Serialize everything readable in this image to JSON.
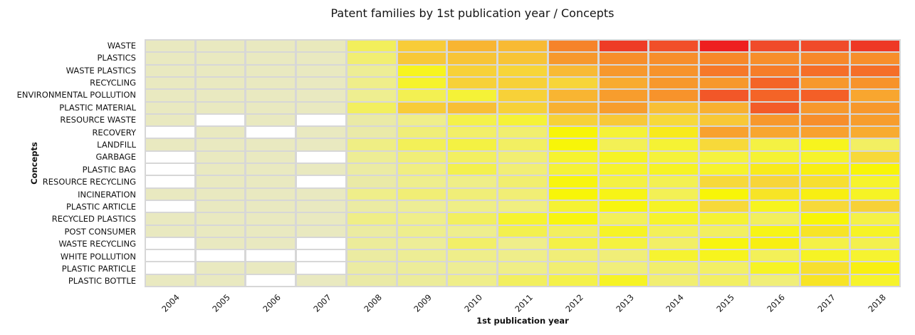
{
  "title": "Patent families by 1st publication year / Concepts",
  "chart_data": {
    "type": "heatmap",
    "title": "Patent families by 1st publication year / Concepts",
    "xlabel": "1st publication year",
    "ylabel": "Concepts",
    "x": [
      "2004",
      "2005",
      "2006",
      "2007",
      "2008",
      "2009",
      "2010",
      "2011",
      "2012",
      "2013",
      "2014",
      "2015",
      "2016",
      "2017",
      "2018"
    ],
    "y": [
      "WASTE",
      "PLASTICS",
      "WASTE PLASTICS",
      "RECYCLING",
      "ENVIRONMENTAL POLLUTION",
      "PLASTIC MATERIAL",
      "RESOURCE WASTE",
      "RECOVERY",
      "LANDFILL",
      "GARBAGE",
      "PLASTIC BAG",
      "RESOURCE RECYCLING",
      "INCINERATION",
      "PLASTIC ARTICLE",
      "RECYCLED PLASTICS",
      "POST CONSUMER",
      "WASTE RECYCLING",
      "WHITE POLLUTION",
      "PLASTIC PARTICLE",
      "PLASTIC BOTTLE"
    ],
    "note": "Cell values are relative intensities (0-100) estimated from the colour scale; null = no data (white cell). No numeric labels or legend are shown in the chart.",
    "values": [
      [
        3,
        3,
        3,
        4,
        37,
        63,
        68,
        67,
        78,
        94,
        89,
        100,
        90,
        90,
        95
      ],
      [
        3,
        3,
        3,
        3,
        30,
        64,
        65,
        65,
        74,
        76,
        76,
        77,
        76,
        77,
        76
      ],
      [
        3,
        3,
        3,
        3,
        18,
        52,
        62,
        61,
        67,
        74,
        75,
        80,
        79,
        82,
        82
      ],
      [
        3,
        3,
        3,
        3,
        22,
        50,
        62,
        62,
        61,
        70,
        74,
        74,
        84,
        74,
        75
      ],
      [
        3,
        3,
        3,
        3,
        20,
        40,
        47,
        62,
        68,
        73,
        75,
        87,
        84,
        85,
        71
      ],
      [
        3,
        3,
        3,
        3,
        36,
        63,
        66,
        62,
        69,
        73,
        66,
        69,
        86,
        74,
        74
      ],
      [
        3,
        null,
        3,
        null,
        11,
        22,
        42,
        47,
        62,
        64,
        60,
        64,
        74,
        76,
        73
      ],
      [
        null,
        3,
        null,
        3,
        10,
        28,
        33,
        31,
        55,
        47,
        57,
        72,
        71,
        72,
        70
      ],
      [
        3,
        3,
        3,
        3,
        24,
        38,
        44,
        35,
        55,
        39,
        48,
        60,
        44,
        52,
        35
      ],
      [
        null,
        3,
        3,
        null,
        18,
        28,
        35,
        30,
        49,
        51,
        46,
        45,
        48,
        50,
        60
      ],
      [
        null,
        3,
        3,
        3,
        12,
        25,
        41,
        29,
        47,
        50,
        51,
        50,
        57,
        56,
        55
      ],
      [
        null,
        3,
        3,
        null,
        11,
        21,
        23,
        31,
        54,
        44,
        40,
        60,
        61,
        59,
        50
      ],
      [
        3,
        3,
        3,
        3,
        22,
        29,
        28,
        29,
        55,
        53,
        39,
        55,
        58,
        56,
        51
      ],
      [
        null,
        3,
        3,
        3,
        12,
        18,
        23,
        25,
        48,
        54,
        51,
        60,
        52,
        60,
        62
      ],
      [
        3,
        3,
        3,
        3,
        23,
        22,
        36,
        49,
        54,
        38,
        50,
        48,
        37,
        55,
        43
      ],
      [
        3,
        3,
        3,
        3,
        13,
        21,
        21,
        41,
        36,
        51,
        38,
        36,
        53,
        58,
        51
      ],
      [
        null,
        3,
        3,
        null,
        16,
        17,
        33,
        22,
        43,
        45,
        34,
        54,
        56,
        43,
        41
      ],
      [
        null,
        null,
        null,
        null,
        13,
        18,
        22,
        22,
        28,
        28,
        49,
        52,
        38,
        51,
        49
      ],
      [
        null,
        3,
        3,
        null,
        12,
        16,
        18,
        23,
        30,
        27,
        32,
        34,
        51,
        59,
        56
      ],
      [
        3,
        3,
        null,
        3,
        11,
        16,
        22,
        36,
        42,
        51,
        30,
        35,
        28,
        58,
        50
      ]
    ],
    "colormap_stops": [
      [
        0,
        "#e8e8ca"
      ],
      [
        10,
        "#eaeaa8"
      ],
      [
        20,
        "#eeee90"
      ],
      [
        30,
        "#f1ee72"
      ],
      [
        40,
        "#f3f052"
      ],
      [
        50,
        "#f6f32c"
      ],
      [
        55,
        "#f8f508"
      ],
      [
        60,
        "#f7d93a"
      ],
      [
        65,
        "#f8c436"
      ],
      [
        70,
        "#f8ab30"
      ],
      [
        75,
        "#f7932b"
      ],
      [
        80,
        "#f67829"
      ],
      [
        85,
        "#f45f27"
      ],
      [
        90,
        "#f04b2a"
      ],
      [
        95,
        "#ee3825"
      ],
      [
        100,
        "#ee1f20"
      ]
    ],
    "missing_color": "#ffffff",
    "grid_line_color": "#d7d7d7",
    "legend": "none",
    "grid": true
  }
}
